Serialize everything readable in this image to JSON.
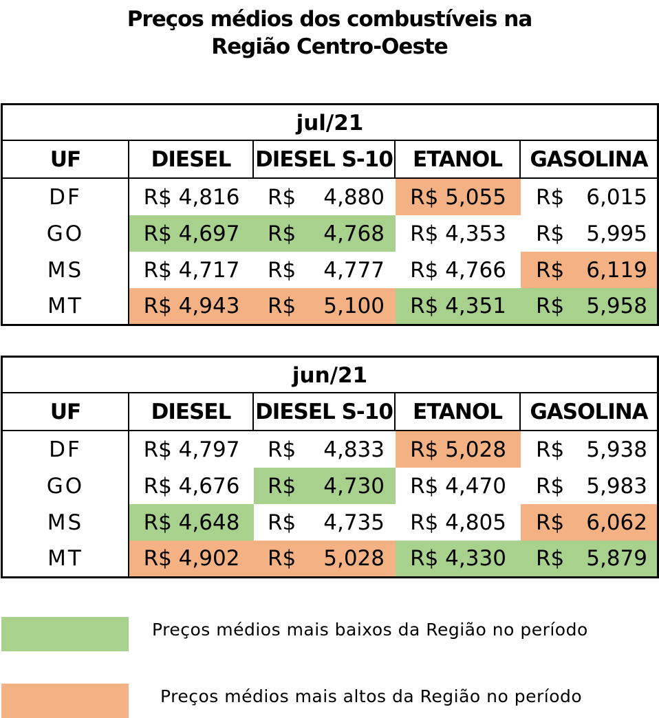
{
  "title": {
    "line1": "Preços médios dos combustíveis na",
    "line2": "Região Centro-Oeste"
  },
  "columns": {
    "uf": "UF",
    "diesel": "DIESEL",
    "diesel_s10": "DIESEL S-10",
    "etanol": "ETANOL",
    "gasolina": "GASOLINA"
  },
  "currency": "R$",
  "tables": [
    {
      "period": "jul/21",
      "rows": [
        {
          "uf": "DF",
          "diesel": "R$ 4,816",
          "diesel_s10": "4,880",
          "etanol": "R$ 5,055",
          "gasolina": "6,015",
          "hl": {
            "diesel": "",
            "diesel_s10": "",
            "etanol": "high",
            "gasolina": ""
          }
        },
        {
          "uf": "GO",
          "diesel": "R$ 4,697",
          "diesel_s10": "4,768",
          "etanol": "R$ 4,353",
          "gasolina": "5,995",
          "hl": {
            "diesel": "low",
            "diesel_s10": "low",
            "etanol": "",
            "gasolina": ""
          }
        },
        {
          "uf": "MS",
          "diesel": "R$ 4,717",
          "diesel_s10": "4,777",
          "etanol": "R$ 4,766",
          "gasolina": "6,119",
          "hl": {
            "diesel": "",
            "diesel_s10": "",
            "etanol": "",
            "gasolina": "high"
          }
        },
        {
          "uf": "MT",
          "diesel": "R$ 4,943",
          "diesel_s10": "5,100",
          "etanol": "R$ 4,351",
          "gasolina": "5,958",
          "hl": {
            "diesel": "high",
            "diesel_s10": "high",
            "etanol": "low",
            "gasolina": "low"
          }
        }
      ]
    },
    {
      "period": "jun/21",
      "rows": [
        {
          "uf": "DF",
          "diesel": "R$ 4,797",
          "diesel_s10": "4,833",
          "etanol": "R$ 5,028",
          "gasolina": "5,938",
          "hl": {
            "diesel": "",
            "diesel_s10": "",
            "etanol": "high",
            "gasolina": ""
          }
        },
        {
          "uf": "GO",
          "diesel": "R$ 4,676",
          "diesel_s10": "4,730",
          "etanol": "R$ 4,470",
          "gasolina": "5,983",
          "hl": {
            "diesel": "",
            "diesel_s10": "low",
            "etanol": "",
            "gasolina": ""
          }
        },
        {
          "uf": "MS",
          "diesel": "R$ 4,648",
          "diesel_s10": "4,735",
          "etanol": "R$ 4,805",
          "gasolina": "6,062",
          "hl": {
            "diesel": "low",
            "diesel_s10": "",
            "etanol": "",
            "gasolina": "high"
          }
        },
        {
          "uf": "MT",
          "diesel": "R$ 4,902",
          "diesel_s10": "5,028",
          "etanol": "R$ 4,330",
          "gasolina": "5,879",
          "hl": {
            "diesel": "high",
            "diesel_s10": "high",
            "etanol": "low",
            "gasolina": "low"
          }
        }
      ]
    }
  ],
  "legend": {
    "low": {
      "label": "Preços médios mais baixos da Região no período",
      "color": "#a9d18e"
    },
    "high": {
      "label": "Preços médios mais altos da Região no período",
      "color": "#f4b183"
    }
  }
}
